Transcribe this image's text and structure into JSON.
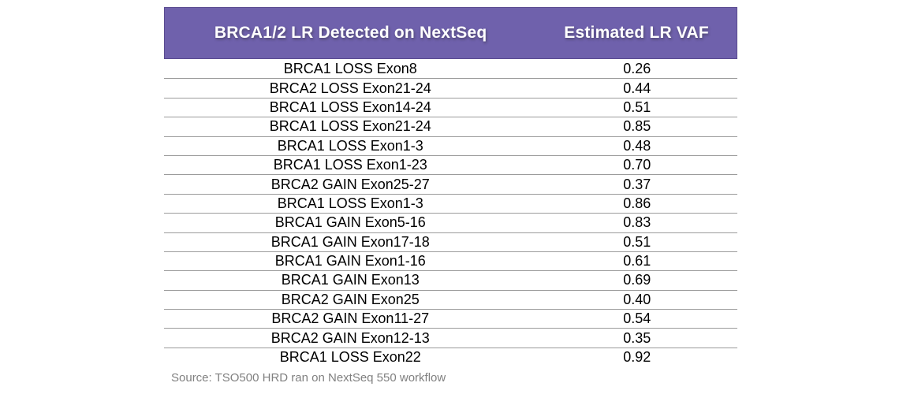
{
  "table": {
    "header": {
      "col1": "BRCA1/2 LR Detected on NextSeq",
      "col2": "Estimated LR VAF"
    },
    "rows": [
      {
        "variant": "BRCA1 LOSS Exon8",
        "vaf": "0.26"
      },
      {
        "variant": "BRCA2 LOSS Exon21-24",
        "vaf": "0.44"
      },
      {
        "variant": "BRCA1 LOSS Exon14-24",
        "vaf": "0.51"
      },
      {
        "variant": "BRCA1 LOSS Exon21-24",
        "vaf": "0.85"
      },
      {
        "variant": "BRCA1 LOSS Exon1-3",
        "vaf": "0.48"
      },
      {
        "variant": "BRCA1 LOSS Exon1-23",
        "vaf": "0.70"
      },
      {
        "variant": "BRCA2 GAIN Exon25-27",
        "vaf": "0.37"
      },
      {
        "variant": "BRCA1 LOSS Exon1-3",
        "vaf": "0.86"
      },
      {
        "variant": "BRCA1 GAIN Exon5-16",
        "vaf": "0.83"
      },
      {
        "variant": "BRCA1 GAIN Exon17-18",
        "vaf": "0.51"
      },
      {
        "variant": "BRCA1 GAIN Exon1-16",
        "vaf": "0.61"
      },
      {
        "variant": "BRCA1 GAIN Exon13",
        "vaf": "0.69"
      },
      {
        "variant": "BRCA2 GAIN Exon25",
        "vaf": "0.40"
      },
      {
        "variant": "BRCA2 GAIN Exon11-27",
        "vaf": "0.54"
      },
      {
        "variant": "BRCA2 GAIN Exon12-13",
        "vaf": "0.35"
      },
      {
        "variant": "BRCA1 LOSS Exon22",
        "vaf": "0.92"
      }
    ],
    "source_note": "Source: TSO500 HRD ran on NextSeq 550 workflow"
  },
  "colors": {
    "header_bg": "#6F61AC",
    "header_border": "#594A90",
    "header_text": "#FFFFFF",
    "row_divider": "#9B9B9B",
    "cell_text": "#000000",
    "source_text": "#808080"
  },
  "chart_data": {
    "type": "table",
    "title": "BRCA1/2 LR Detected on NextSeq",
    "columns": [
      "BRCA1/2 LR Detected on NextSeq",
      "Estimated LR VAF"
    ],
    "rows": [
      [
        "BRCA1 LOSS Exon8",
        0.26
      ],
      [
        "BRCA2 LOSS Exon21-24",
        0.44
      ],
      [
        "BRCA1 LOSS Exon14-24",
        0.51
      ],
      [
        "BRCA1 LOSS Exon21-24",
        0.85
      ],
      [
        "BRCA1 LOSS Exon1-3",
        0.48
      ],
      [
        "BRCA1 LOSS Exon1-23",
        0.7
      ],
      [
        "BRCA2 GAIN Exon25-27",
        0.37
      ],
      [
        "BRCA1 LOSS Exon1-3",
        0.86
      ],
      [
        "BRCA1 GAIN Exon5-16",
        0.83
      ],
      [
        "BRCA1 GAIN Exon17-18",
        0.51
      ],
      [
        "BRCA1 GAIN Exon1-16",
        0.61
      ],
      [
        "BRCA1 GAIN Exon13",
        0.69
      ],
      [
        "BRCA2 GAIN Exon25",
        0.4
      ],
      [
        "BRCA2 GAIN Exon11-27",
        0.54
      ],
      [
        "BRCA2 GAIN Exon12-13",
        0.35
      ],
      [
        "BRCA1 LOSS Exon22",
        0.92
      ]
    ],
    "annotations": [
      "Source: TSO500 HRD ran on NextSeq 550 workflow"
    ]
  }
}
